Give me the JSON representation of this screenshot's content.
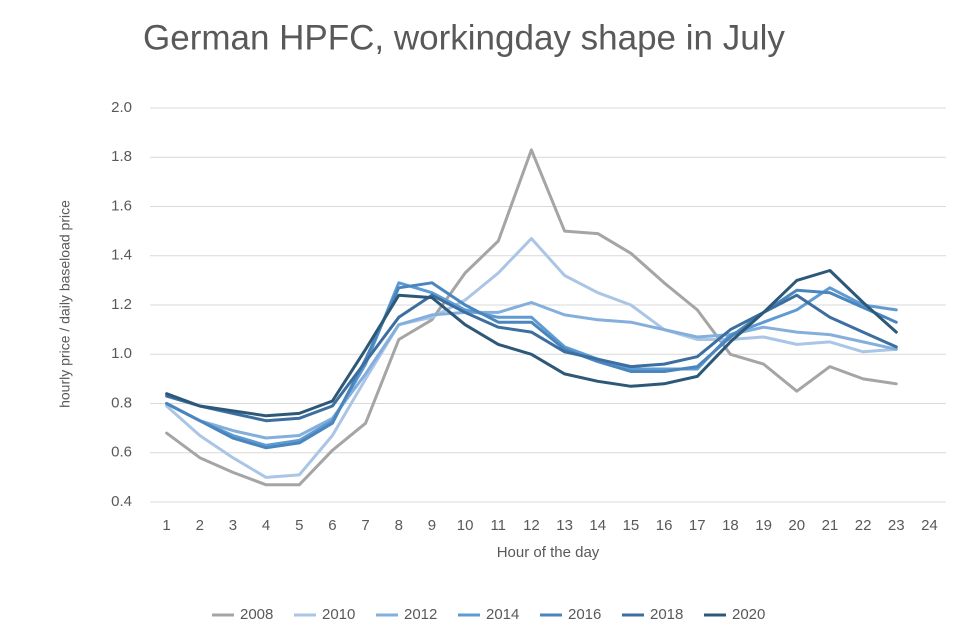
{
  "chart_data": {
    "type": "line",
    "title": "German HPFC, workingday shape in July",
    "x_label": "Hour of the day",
    "y_label": "hourly price / daily baseload price",
    "categories": [
      "1",
      "2",
      "3",
      "4",
      "5",
      "6",
      "7",
      "8",
      "9",
      "10",
      "11",
      "12",
      "13",
      "14",
      "15",
      "16",
      "17",
      "18",
      "19",
      "20",
      "21",
      "22",
      "23",
      "24"
    ],
    "ylim": [
      0.4,
      2.0
    ],
    "yticks": [
      0.4,
      0.6,
      0.8,
      {
        "value": 1.0,
        "label": "1.0"
      },
      1.2,
      1.4,
      1.6,
      1.8,
      {
        "value": 2.0,
        "label": "2.0"
      }
    ],
    "grid": true,
    "legend": "bottom",
    "series": [
      {
        "name": "2008",
        "color": "#a5a5a5",
        "values": [
          0.68,
          0.58,
          0.52,
          0.47,
          0.47,
          0.61,
          0.72,
          1.06,
          1.14,
          1.33,
          1.46,
          1.83,
          1.5,
          1.49,
          1.41,
          1.29,
          1.18,
          1.0,
          0.96,
          0.85,
          0.95,
          0.9,
          0.88,
          null
        ]
      },
      {
        "name": "2010",
        "color": "#aac5e6",
        "values": [
          0.79,
          0.67,
          0.58,
          0.5,
          0.51,
          0.67,
          0.9,
          1.12,
          1.15,
          1.22,
          1.33,
          1.47,
          1.32,
          1.25,
          1.2,
          1.1,
          1.06,
          1.06,
          1.07,
          1.04,
          1.05,
          1.01,
          1.02,
          null
        ]
      },
      {
        "name": "2012",
        "color": "#84afdc",
        "values": [
          0.8,
          0.73,
          0.69,
          0.66,
          0.67,
          0.74,
          0.92,
          1.12,
          1.16,
          1.17,
          1.17,
          1.21,
          1.16,
          1.14,
          1.13,
          1.1,
          1.07,
          1.08,
          1.11,
          1.09,
          1.08,
          1.05,
          1.02,
          null
        ]
      },
      {
        "name": "2014",
        "color": "#5e9bd3",
        "values": [
          0.8,
          0.73,
          0.67,
          0.63,
          0.65,
          0.73,
          0.96,
          1.29,
          1.25,
          1.18,
          1.15,
          1.15,
          1.03,
          0.98,
          0.94,
          0.94,
          0.94,
          1.08,
          1.13,
          1.18,
          1.27,
          1.2,
          1.18,
          null
        ]
      },
      {
        "name": "2016",
        "color": "#4a86bd",
        "values": [
          0.8,
          0.73,
          0.66,
          0.62,
          0.64,
          0.72,
          0.98,
          1.27,
          1.29,
          1.2,
          1.13,
          1.13,
          1.02,
          0.97,
          0.93,
          0.93,
          0.95,
          1.07,
          1.17,
          1.26,
          1.25,
          1.19,
          1.13,
          null
        ]
      },
      {
        "name": "2018",
        "color": "#3c6f9f",
        "values": [
          0.83,
          0.79,
          0.76,
          0.73,
          0.74,
          0.79,
          0.97,
          1.15,
          1.24,
          1.17,
          1.11,
          1.09,
          1.01,
          0.98,
          0.95,
          0.96,
          0.99,
          1.1,
          1.17,
          1.24,
          1.15,
          1.09,
          1.03,
          null
        ]
      },
      {
        "name": "2020",
        "color": "#2d5878",
        "values": [
          0.84,
          0.79,
          0.77,
          0.75,
          0.76,
          0.81,
          1.02,
          1.24,
          1.23,
          1.12,
          1.04,
          1.0,
          0.92,
          0.89,
          0.87,
          0.88,
          0.91,
          1.05,
          1.17,
          1.3,
          1.34,
          1.21,
          1.09,
          null
        ]
      }
    ]
  }
}
